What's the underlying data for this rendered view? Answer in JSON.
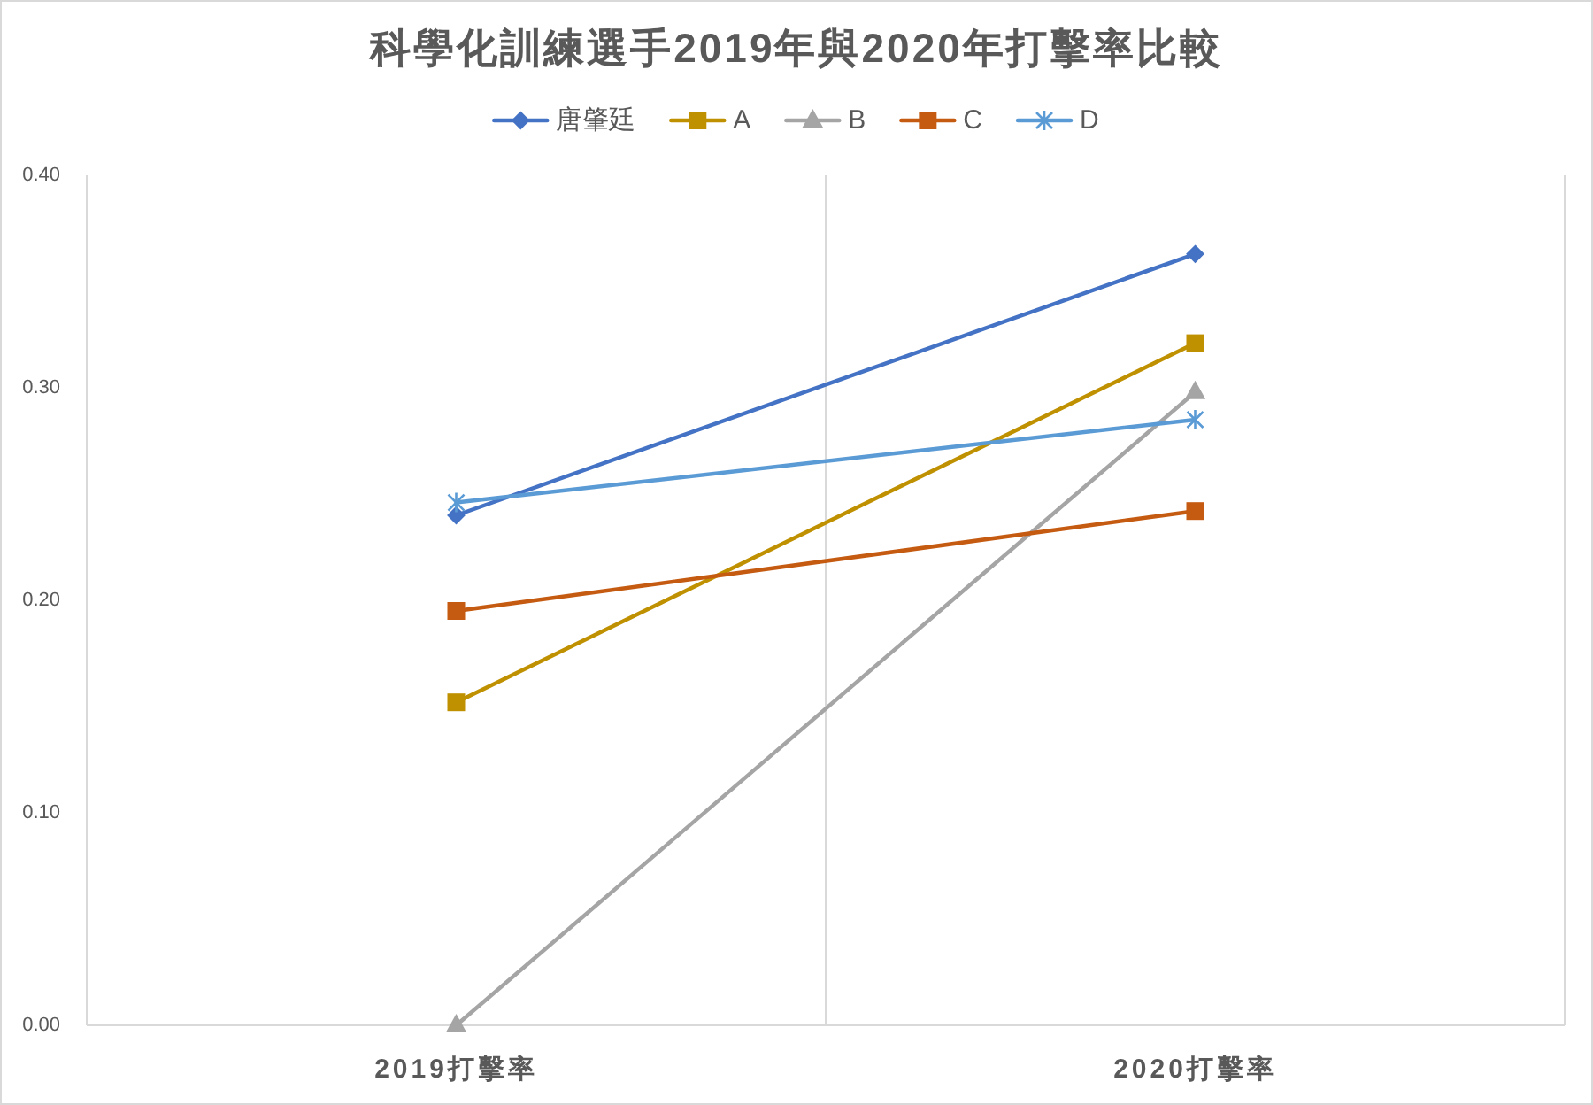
{
  "chart_data": {
    "type": "line",
    "title": "科學化訓練選手2019年與2020年打擊率比較",
    "categories": [
      "2019打擊率",
      "2020打擊率"
    ],
    "series": [
      {
        "name": "唐肇廷",
        "color": "#4472c4",
        "marker": "diamond",
        "values": [
          0.24,
          0.363
        ]
      },
      {
        "name": "A",
        "color": "#bf9000",
        "marker": "square",
        "values": [
          0.152,
          0.321
        ]
      },
      {
        "name": "B",
        "color": "#a5a5a5",
        "marker": "triangle",
        "values": [
          0.0,
          0.298
        ]
      },
      {
        "name": "C",
        "color": "#c55a11",
        "marker": "square",
        "values": [
          0.195,
          0.242
        ]
      },
      {
        "name": "D",
        "color": "#5b9bd5",
        "marker": "cross",
        "values": [
          0.246,
          0.285
        ]
      }
    ],
    "ylim": [
      0,
      0.4
    ],
    "yticks": [
      {
        "value": 0,
        "label": "0.00"
      },
      {
        "value": 0.1,
        "label": "0.10"
      },
      {
        "value": 0.2,
        "label": "0.20"
      },
      {
        "value": 0.3,
        "label": "0.30"
      },
      {
        "value": 0.4,
        "label": "0.40"
      }
    ],
    "grid": "x",
    "legend": "top"
  }
}
